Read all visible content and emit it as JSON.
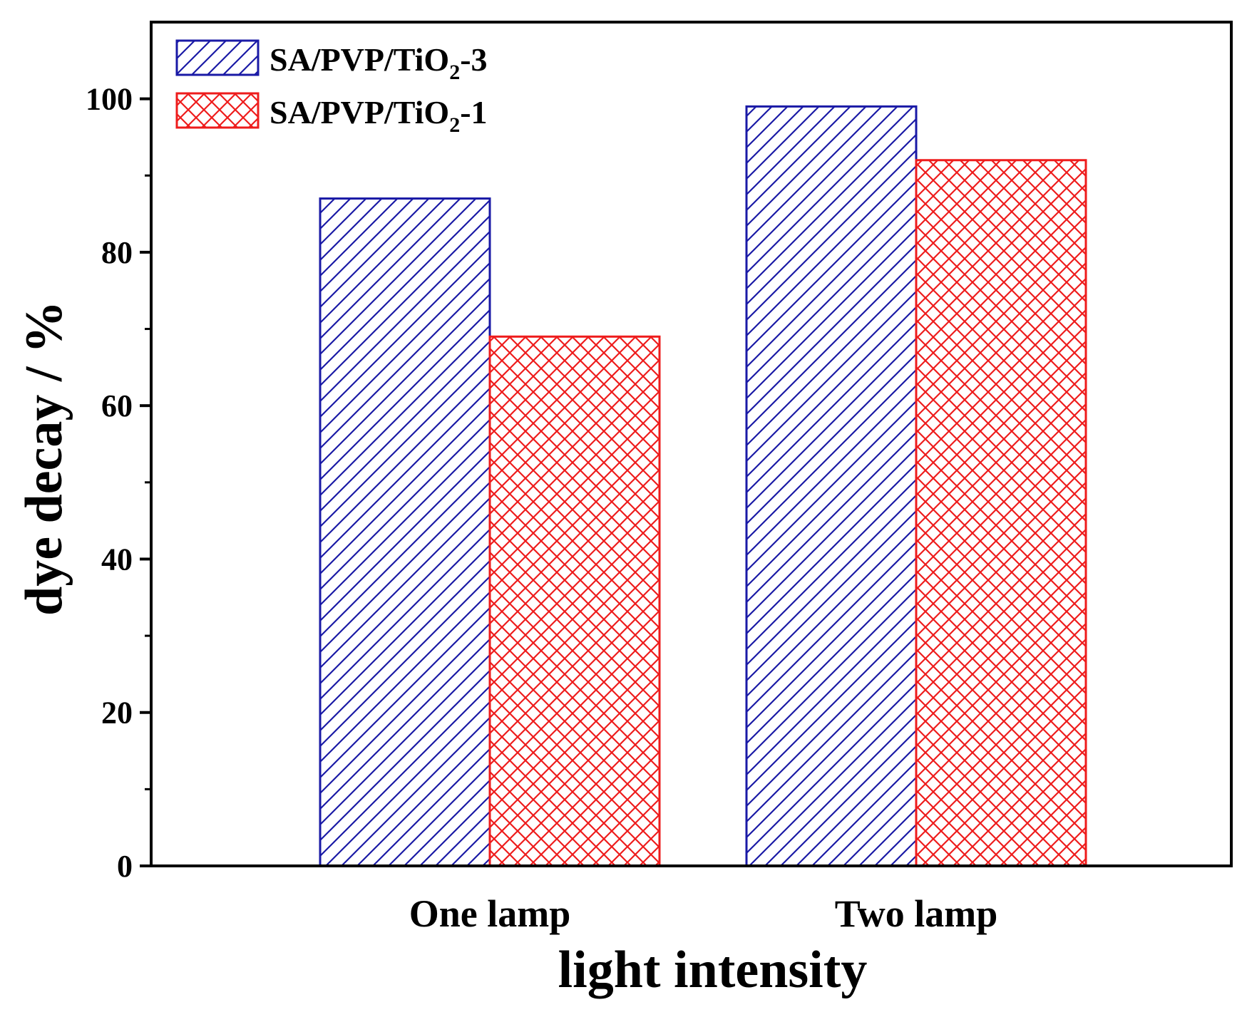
{
  "chart_data": {
    "type": "bar",
    "xlabel": "light intensity",
    "ylabel": "dye decay / %",
    "ylim": [
      0,
      110
    ],
    "ytick_values": [
      0,
      20,
      40,
      60,
      80,
      100
    ],
    "ytick_labels": [
      "0",
      "20",
      "40",
      "60",
      "80",
      "100"
    ],
    "minor_tick_values": [
      10,
      30,
      50,
      70,
      90
    ],
    "categories": [
      "One lamp",
      "Two lamp"
    ],
    "legend_position": "top-left",
    "grid": false,
    "series": [
      {
        "name": "SA/PVP/TiO2-3",
        "name_prefix": "SA/PVP/TiO",
        "name_sub": "2",
        "name_suffix": "-3",
        "pattern": "diagonal-hatch",
        "color": "#1a1aa6",
        "values": [
          87,
          99
        ]
      },
      {
        "name": "SA/PVP/TiO2-1",
        "name_prefix": "SA/PVP/TiO",
        "name_sub": "2",
        "name_suffix": "-1",
        "pattern": "cross-hatch",
        "color": "#ee1c1c",
        "values": [
          69,
          92
        ]
      }
    ]
  }
}
